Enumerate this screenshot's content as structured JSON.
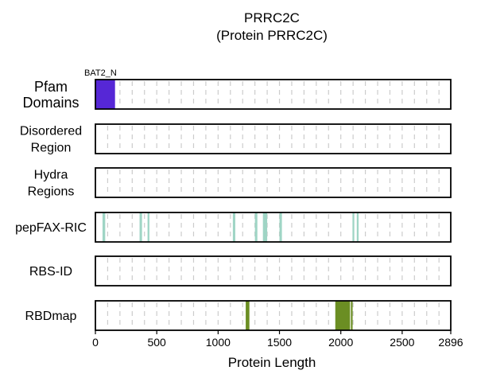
{
  "chart_data": {
    "type": "bar",
    "title": "PRRC2C",
    "subtitle": "(Protein PRRC2C)",
    "xlabel": "Protein Length",
    "xlim": [
      0,
      2896
    ],
    "x_ticks": [
      0,
      500,
      1000,
      1500,
      2000,
      2500,
      2896
    ],
    "tracks": [
      {
        "label_lines": [
          "Pfam",
          "Domains"
        ],
        "emphasis": true,
        "segments": [
          {
            "start": 1,
            "end": 160,
            "color": "#5627d6",
            "label": "BAT2_N"
          }
        ]
      },
      {
        "label_lines": [
          "Disordered",
          "Region"
        ],
        "segments": []
      },
      {
        "label_lines": [
          "Hydra",
          "Regions"
        ],
        "segments": []
      },
      {
        "label_lines": [
          "pepFAX-RIC"
        ],
        "segments": [
          {
            "start": 58,
            "end": 80,
            "color": "#9fd5c5"
          },
          {
            "start": 360,
            "end": 380,
            "color": "#9fd5c5"
          },
          {
            "start": 425,
            "end": 440,
            "color": "#9fd5c5"
          },
          {
            "start": 1120,
            "end": 1140,
            "color": "#9fd5c5"
          },
          {
            "start": 1300,
            "end": 1320,
            "color": "#9fd5c5"
          },
          {
            "start": 1365,
            "end": 1400,
            "color": "#9fd5c5"
          },
          {
            "start": 1500,
            "end": 1520,
            "color": "#9fd5c5"
          },
          {
            "start": 2095,
            "end": 2110,
            "color": "#9fd5c5"
          },
          {
            "start": 2130,
            "end": 2145,
            "color": "#9fd5c5"
          }
        ]
      },
      {
        "label_lines": [
          "RBS-ID"
        ],
        "segments": []
      },
      {
        "label_lines": [
          "RBDmap"
        ],
        "segments": [
          {
            "start": 1225,
            "end": 1255,
            "color": "#6b8e23"
          },
          {
            "start": 1955,
            "end": 2075,
            "color": "#6b8e23"
          },
          {
            "start": 2082,
            "end": 2096,
            "color": "#6b8e23"
          }
        ]
      }
    ]
  }
}
